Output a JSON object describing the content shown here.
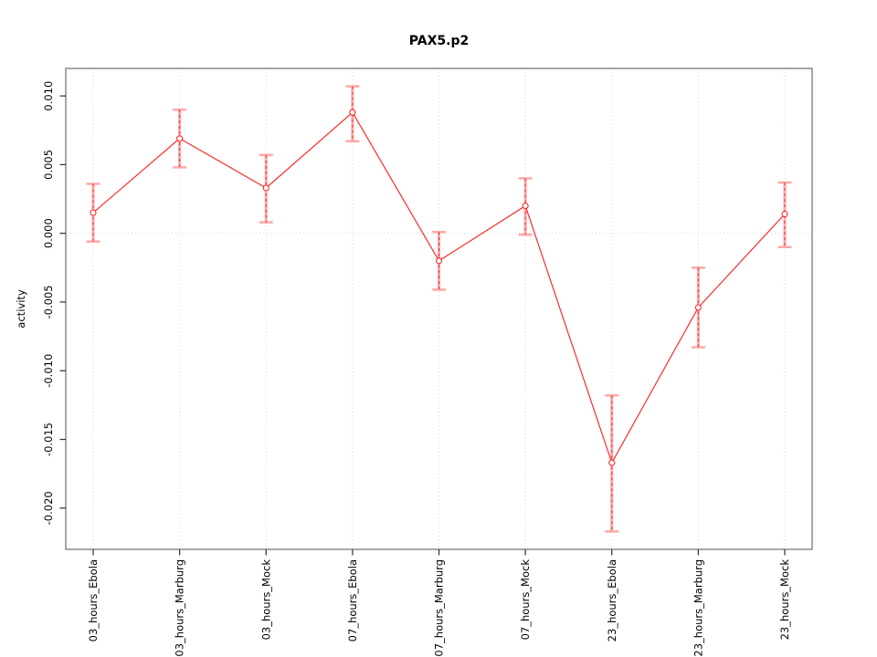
{
  "chart_data": {
    "type": "line",
    "title": "PAX5.p2",
    "xlabel": "",
    "ylabel": "activity",
    "categories": [
      "03_hours_Ebola",
      "03_hours_Marburg",
      "03_hours_Mock",
      "07_hours_Ebola",
      "07_hours_Marburg",
      "07_hours_Mock",
      "23_hours_Ebola",
      "23_hours_Marburg",
      "23_hours_Mock"
    ],
    "series": [
      {
        "name": "PAX5.p2 activity",
        "values": [
          0.0015,
          0.0069,
          0.0033,
          0.0088,
          -0.002,
          0.002,
          -0.0167,
          -0.0054,
          0.0014
        ],
        "error_lower": [
          -0.0006,
          0.0048,
          0.0008,
          0.0067,
          -0.0041,
          -0.0001,
          -0.0217,
          -0.0083,
          -0.001
        ],
        "error_upper": [
          0.0036,
          0.009,
          0.0057,
          0.0107,
          0.0001,
          0.004,
          -0.0118,
          -0.0025,
          0.0037
        ]
      }
    ],
    "y_ticks": [
      0.01,
      0.005,
      0.0,
      -0.005,
      -0.01,
      -0.015,
      -0.02
    ],
    "y_tick_labels": [
      "0.010",
      "0.005",
      "0.000",
      "-0.005",
      "-0.010",
      "-0.015",
      "-0.020"
    ],
    "ylim": [
      -0.023,
      0.012
    ],
    "grid": {
      "vertical": "dotted line at each category",
      "horizontal": "dotted line at y=0 only"
    },
    "legend": "none",
    "marker": "open-circle",
    "colors": {
      "line": "#fb2b2b",
      "error_bar": "#ffa8a8",
      "grid": "#d8d8d8",
      "plot_border": "#8a8a8a",
      "tick": "#2f2f2f",
      "text": "#000000",
      "background": "#ffffff"
    }
  }
}
